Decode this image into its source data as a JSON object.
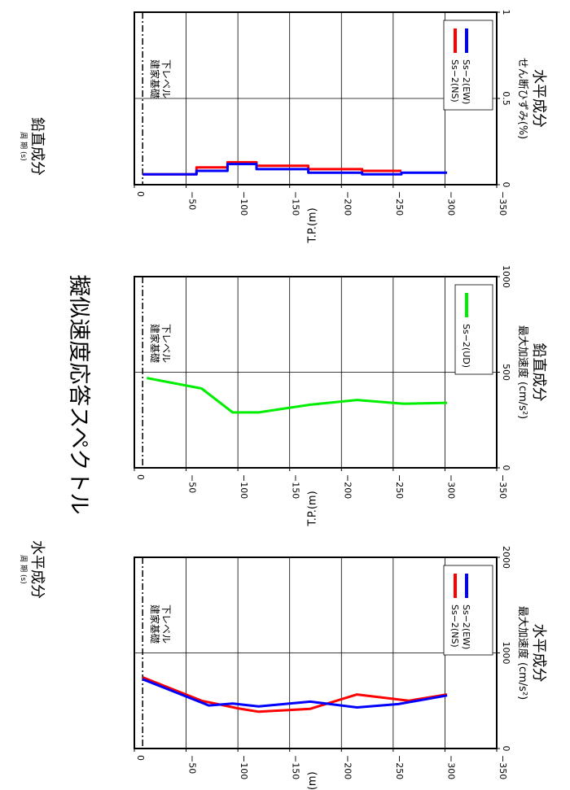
{
  "header": {
    "main_title": "擬似速度応答スペクトル",
    "left_caption_small": "周 期 (s)",
    "left_caption": "水平成分",
    "right_caption_small": "周 期 (s)",
    "right_caption": "鉛直成分"
  },
  "chart_data": [
    {
      "id": "horizontal-acc",
      "type": "line",
      "xlabel": "最大加速度 (cm/s²)",
      "ylabel": "T.P.(m)",
      "caption": "水平成分",
      "xlim": [
        0,
        2000
      ],
      "ylim": [
        0,
        -350
      ],
      "x_ticks": [
        0,
        1000,
        2000
      ],
      "y_ticks": [
        0,
        -50,
        -100,
        -150,
        -200,
        -250,
        -300,
        -350
      ],
      "grid": true,
      "legend_position": "lower-right",
      "annotation": {
        "text": "建家基礎下レベル",
        "line1": "建家基礎",
        "line2": "下レベル",
        "depth": -8
      },
      "series": [
        {
          "name": "Ss−2(NS)",
          "color": "#ff0000",
          "points": [
            [
              745,
              -8
            ],
            [
              500,
              -65
            ],
            [
              420,
              -100
            ],
            [
              385,
              -120
            ],
            [
              415,
              -170
            ],
            [
              565,
              -215
            ],
            [
              500,
              -265
            ],
            [
              565,
              -302
            ]
          ]
        },
        {
          "name": "Ss−2(EW)",
          "color": "#0000ff",
          "points": [
            [
              725,
              -8
            ],
            [
              450,
              -72
            ],
            [
              470,
              -95
            ],
            [
              440,
              -120
            ],
            [
              490,
              -170
            ],
            [
              430,
              -215
            ],
            [
              465,
              -255
            ],
            [
              555,
              -302
            ]
          ]
        }
      ]
    },
    {
      "id": "vertical-acc",
      "type": "line",
      "xlabel": "最大加速度 (cm/s²)",
      "ylabel": "T.P.(m)",
      "caption": "鉛直成分",
      "xlim": [
        0,
        1000
      ],
      "ylim": [
        0,
        -350
      ],
      "x_ticks": [
        0,
        500,
        1000
      ],
      "y_ticks": [
        0,
        -50,
        -100,
        -150,
        -200,
        -250,
        -300,
        -350
      ],
      "grid": true,
      "legend_position": "lower-right",
      "annotation": {
        "text": "建家基礎下レベル",
        "line1": "建家基礎",
        "line2": "下レベル",
        "depth": -8
      },
      "series": [
        {
          "name": "Ss−2(UD)",
          "color": "#00ee00",
          "points": [
            [
              470,
              -12
            ],
            [
              415,
              -65
            ],
            [
              290,
              -95
            ],
            [
              290,
              -120
            ],
            [
              330,
              -170
            ],
            [
              355,
              -215
            ],
            [
              335,
              -260
            ],
            [
              340,
              -302
            ]
          ]
        }
      ]
    },
    {
      "id": "shear-strain",
      "type": "line",
      "xlabel": "せん断ひずみ(%)",
      "ylabel": "T.P.(m)",
      "caption": "水平成分",
      "xlim": [
        0,
        1
      ],
      "ylim": [
        0,
        -350
      ],
      "x_ticks": [
        0,
        0.5,
        1
      ],
      "y_ticks": [
        0,
        -50,
        -100,
        -150,
        -200,
        -250,
        -300,
        -350
      ],
      "grid": true,
      "legend_position": "lower-right",
      "annotation": {
        "text": "建家基礎下レベル",
        "line1": "建家基礎",
        "line2": "下レベル",
        "depth": -8
      },
      "series": [
        {
          "name": "Ss−2(NS)",
          "color": "#ff0000",
          "points": [
            [
              0.06,
              -8
            ],
            [
              0.06,
              -60
            ],
            [
              0.1,
              -60
            ],
            [
              0.1,
              -90
            ],
            [
              0.13,
              -90
            ],
            [
              0.13,
              -118
            ],
            [
              0.11,
              -118
            ],
            [
              0.11,
              -168
            ],
            [
              0.09,
              -168
            ],
            [
              0.09,
              -220
            ],
            [
              0.08,
              -220
            ],
            [
              0.08,
              -258
            ]
          ]
        },
        {
          "name": "Ss−2(EW)",
          "color": "#0000ff",
          "points": [
            [
              0.06,
              -8
            ],
            [
              0.06,
              -60
            ],
            [
              0.08,
              -60
            ],
            [
              0.08,
              -90
            ],
            [
              0.12,
              -90
            ],
            [
              0.12,
              -118
            ],
            [
              0.09,
              -118
            ],
            [
              0.09,
              -168
            ],
            [
              0.07,
              -168
            ],
            [
              0.07,
              -220
            ],
            [
              0.06,
              -220
            ],
            [
              0.06,
              -258
            ],
            [
              0.07,
              -258
            ],
            [
              0.07,
              -302
            ]
          ]
        }
      ]
    }
  ]
}
